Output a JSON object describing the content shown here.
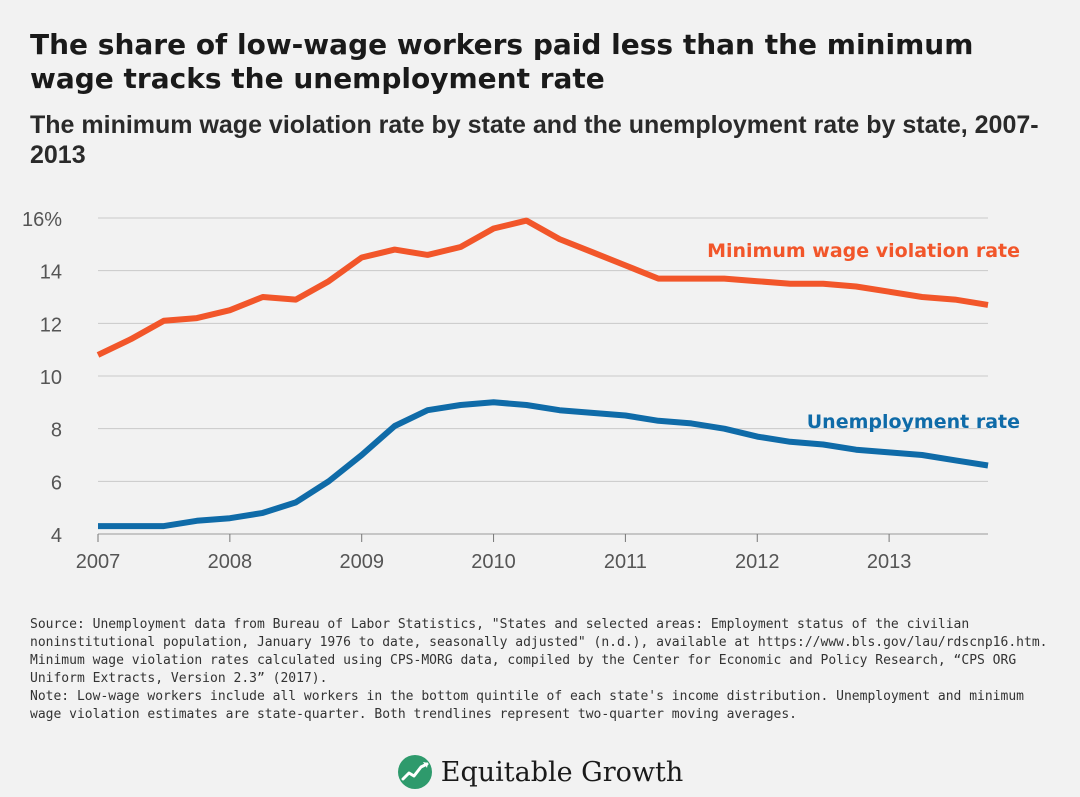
{
  "title": "The share of low-wage workers paid less than the minimum wage tracks the unemployment rate",
  "subtitle": "The minimum wage violation rate by state and the unemployment rate by state, 2007-2013",
  "chart_data": {
    "type": "line",
    "x_tick_labels": [
      "2007",
      "2008",
      "2009",
      "2010",
      "2011",
      "2012",
      "2013"
    ],
    "y_tick_labels": [
      "16%",
      "14",
      "12",
      "10",
      "8",
      "6",
      "4"
    ],
    "y_ticks": [
      16,
      14,
      12,
      10,
      8,
      6,
      4
    ],
    "ylim": [
      4,
      16
    ],
    "xlim": [
      2007,
      2013.75
    ],
    "x_quarters": [
      2007.0,
      2007.25,
      2007.5,
      2007.75,
      2008.0,
      2008.25,
      2008.5,
      2008.75,
      2009.0,
      2009.25,
      2009.5,
      2009.75,
      2010.0,
      2010.25,
      2010.5,
      2010.75,
      2011.0,
      2011.25,
      2011.5,
      2011.75,
      2012.0,
      2012.25,
      2012.5,
      2012.75,
      2013.0,
      2013.25,
      2013.5,
      2013.75
    ],
    "grid": true,
    "series": [
      {
        "name": "Minimum wage violation rate",
        "color": "#f2562a",
        "values": [
          10.8,
          11.4,
          12.1,
          12.2,
          12.5,
          13.0,
          12.9,
          13.6,
          14.5,
          14.8,
          14.6,
          14.9,
          15.6,
          15.9,
          15.2,
          14.7,
          14.2,
          13.7,
          13.7,
          13.7,
          13.6,
          13.5,
          13.5,
          13.4,
          13.2,
          13.0,
          12.9,
          12.7
        ]
      },
      {
        "name": "Unemployment rate",
        "color": "#0f6ba8",
        "values": [
          4.3,
          4.3,
          4.3,
          4.5,
          4.6,
          4.8,
          5.2,
          6.0,
          7.0,
          8.1,
          8.7,
          8.9,
          9.0,
          8.9,
          8.7,
          8.6,
          8.5,
          8.3,
          8.2,
          8.0,
          7.7,
          7.5,
          7.4,
          7.2,
          7.1,
          7.0,
          6.8,
          6.6
        ]
      }
    ]
  },
  "footnotes": {
    "source": "Source: Unemployment data from Bureau of Labor Statistics, \"States and selected areas: Employment status of the civilian noninstitutional population, January 1976 to date, seasonally adjusted\" (n.d.), available at https://www.bls.gov/lau/rdscnp16.htm. Minimum wage violation rates calculated using CPS-MORG data, compiled by the Center for Economic and Policy Research, “CPS ORG Uniform Extracts, Version 2.3” (2017).",
    "note": "Note: Low-wage workers include all workers in the bottom quintile of each state's income distribution. Unemployment and minimum wage violation estimates are state-quarter. Both trendlines represent two-quarter moving averages."
  },
  "logo": {
    "text": "Equitable Growth",
    "icon": "growth-chart-icon",
    "color": "#2e9a6c"
  }
}
